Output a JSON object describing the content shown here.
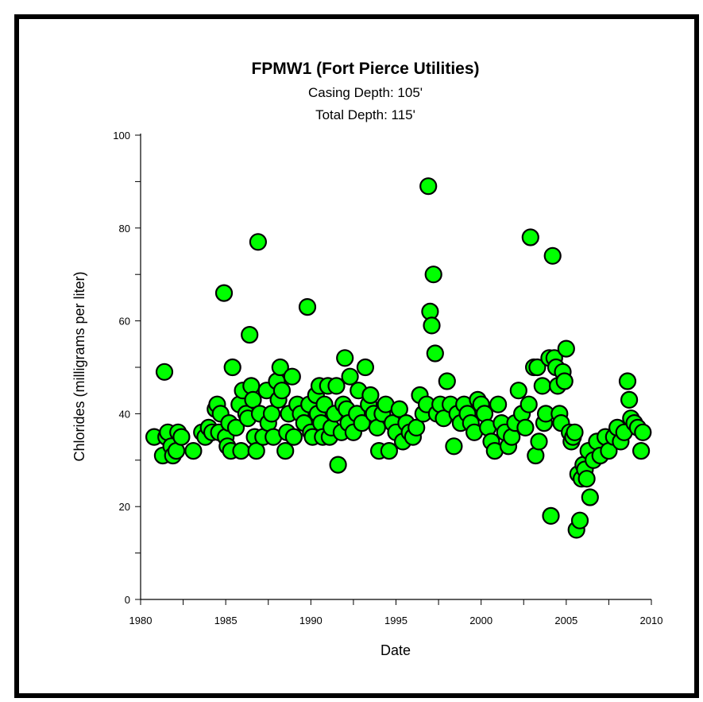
{
  "chart_data": {
    "type": "scatter",
    "title": "FPMW1 (Fort Pierce Utilities)",
    "subtitle_lines": [
      "Casing Depth:  105'",
      "Total Depth:  115'"
    ],
    "xlabel": "Date",
    "ylabel": "Chlorides (milligrams per liter)",
    "xlim": [
      1980,
      2010
    ],
    "ylim": [
      0,
      100
    ],
    "xticks": [
      "1980",
      "1985",
      "1990",
      "1995",
      "2000",
      "2005",
      "2010"
    ],
    "yticks": [
      "0",
      "20",
      "40",
      "60",
      "80",
      "100"
    ],
    "grid": false,
    "marker_color": "#00ff00",
    "marker_edge": "#000000",
    "points": [
      [
        1980.8,
        35
      ],
      [
        1981.3,
        31
      ],
      [
        1981.4,
        49
      ],
      [
        1981.5,
        35
      ],
      [
        1981.6,
        36
      ],
      [
        1981.8,
        33
      ],
      [
        1981.9,
        31
      ],
      [
        1982.1,
        32
      ],
      [
        1982.2,
        36
      ],
      [
        1982.4,
        35
      ],
      [
        1983.1,
        32
      ],
      [
        1983.6,
        36
      ],
      [
        1983.8,
        35
      ],
      [
        1984.0,
        37
      ],
      [
        1984.2,
        36
      ],
      [
        1984.4,
        41
      ],
      [
        1984.5,
        42
      ],
      [
        1984.6,
        36
      ],
      [
        1984.7,
        40
      ],
      [
        1984.9,
        66
      ],
      [
        1985.0,
        35
      ],
      [
        1985.1,
        33
      ],
      [
        1985.2,
        38
      ],
      [
        1985.3,
        32
      ],
      [
        1985.4,
        50
      ],
      [
        1985.6,
        37
      ],
      [
        1985.8,
        42
      ],
      [
        1985.9,
        32
      ],
      [
        1986.0,
        45
      ],
      [
        1986.2,
        40
      ],
      [
        1986.3,
        39
      ],
      [
        1986.4,
        57
      ],
      [
        1986.5,
        46
      ],
      [
        1986.6,
        43
      ],
      [
        1986.7,
        35
      ],
      [
        1986.8,
        32
      ],
      [
        1986.9,
        77
      ],
      [
        1987.0,
        40
      ],
      [
        1987.2,
        35
      ],
      [
        1987.4,
        45
      ],
      [
        1987.5,
        38
      ],
      [
        1987.7,
        40
      ],
      [
        1987.8,
        35
      ],
      [
        1988.0,
        47
      ],
      [
        1988.1,
        43
      ],
      [
        1988.2,
        50
      ],
      [
        1988.3,
        45
      ],
      [
        1988.5,
        32
      ],
      [
        1988.6,
        36
      ],
      [
        1988.7,
        40
      ],
      [
        1988.9,
        48
      ],
      [
        1989.0,
        35
      ],
      [
        1989.2,
        42
      ],
      [
        1989.4,
        40
      ],
      [
        1989.6,
        38
      ],
      [
        1989.8,
        63
      ],
      [
        1989.9,
        42
      ],
      [
        1990.0,
        36
      ],
      [
        1990.1,
        35
      ],
      [
        1990.3,
        44
      ],
      [
        1990.4,
        40
      ],
      [
        1990.5,
        46
      ],
      [
        1990.6,
        38
      ],
      [
        1990.7,
        35
      ],
      [
        1990.8,
        42
      ],
      [
        1991.0,
        46
      ],
      [
        1991.1,
        35
      ],
      [
        1991.2,
        37
      ],
      [
        1991.4,
        40
      ],
      [
        1991.5,
        46
      ],
      [
        1991.6,
        29
      ],
      [
        1991.8,
        36
      ],
      [
        1991.9,
        42
      ],
      [
        1992.0,
        52
      ],
      [
        1992.1,
        41
      ],
      [
        1992.2,
        38
      ],
      [
        1992.3,
        48
      ],
      [
        1992.5,
        36
      ],
      [
        1992.7,
        40
      ],
      [
        1992.8,
        45
      ],
      [
        1993.0,
        38
      ],
      [
        1993.2,
        50
      ],
      [
        1993.4,
        42
      ],
      [
        1993.5,
        44
      ],
      [
        1993.7,
        40
      ],
      [
        1993.9,
        37
      ],
      [
        1994.0,
        32
      ],
      [
        1994.2,
        40
      ],
      [
        1994.4,
        42
      ],
      [
        1994.6,
        32
      ],
      [
        1994.8,
        38
      ],
      [
        1995.0,
        36
      ],
      [
        1995.2,
        41
      ],
      [
        1995.4,
        34
      ],
      [
        1995.6,
        38
      ],
      [
        1995.8,
        36
      ],
      [
        1996.0,
        35
      ],
      [
        1996.2,
        37
      ],
      [
        1996.4,
        44
      ],
      [
        1996.6,
        40
      ],
      [
        1996.8,
        42
      ],
      [
        1996.9,
        89
      ],
      [
        1997.0,
        62
      ],
      [
        1997.1,
        59
      ],
      [
        1997.2,
        70
      ],
      [
        1997.3,
        53
      ],
      [
        1997.4,
        40
      ],
      [
        1997.6,
        42
      ],
      [
        1997.8,
        39
      ],
      [
        1998.0,
        47
      ],
      [
        1998.2,
        42
      ],
      [
        1998.4,
        33
      ],
      [
        1998.6,
        40
      ],
      [
        1998.8,
        38
      ],
      [
        1999.0,
        42
      ],
      [
        1999.2,
        40
      ],
      [
        1999.4,
        38
      ],
      [
        1999.6,
        36
      ],
      [
        1999.8,
        43
      ],
      [
        2000.0,
        42
      ],
      [
        2000.2,
        40
      ],
      [
        2000.4,
        37
      ],
      [
        2000.6,
        34
      ],
      [
        2000.8,
        32
      ],
      [
        2001.0,
        42
      ],
      [
        2001.2,
        38
      ],
      [
        2001.4,
        36
      ],
      [
        2001.6,
        33
      ],
      [
        2001.8,
        35
      ],
      [
        2002.0,
        38
      ],
      [
        2002.2,
        45
      ],
      [
        2002.4,
        40
      ],
      [
        2002.6,
        37
      ],
      [
        2002.8,
        42
      ],
      [
        2002.9,
        78
      ],
      [
        2003.1,
        50
      ],
      [
        2003.2,
        31
      ],
      [
        2003.3,
        50
      ],
      [
        2003.4,
        34
      ],
      [
        2003.6,
        46
      ],
      [
        2003.7,
        38
      ],
      [
        2003.8,
        40
      ],
      [
        2004.0,
        52
      ],
      [
        2004.1,
        18
      ],
      [
        2004.2,
        74
      ],
      [
        2004.3,
        52
      ],
      [
        2004.4,
        50
      ],
      [
        2004.5,
        46
      ],
      [
        2004.6,
        40
      ],
      [
        2004.7,
        38
      ],
      [
        2004.8,
        49
      ],
      [
        2004.9,
        47
      ],
      [
        2005.0,
        54
      ],
      [
        2005.2,
        36
      ],
      [
        2005.3,
        34
      ],
      [
        2005.4,
        35
      ],
      [
        2005.5,
        36
      ],
      [
        2005.6,
        15
      ],
      [
        2005.7,
        27
      ],
      [
        2005.8,
        17
      ],
      [
        2005.9,
        26
      ],
      [
        2006.0,
        29
      ],
      [
        2006.1,
        28
      ],
      [
        2006.2,
        26
      ],
      [
        2006.3,
        32
      ],
      [
        2006.4,
        22
      ],
      [
        2006.6,
        30
      ],
      [
        2006.8,
        34
      ],
      [
        2007.0,
        31
      ],
      [
        2007.3,
        35
      ],
      [
        2007.5,
        32
      ],
      [
        2007.8,
        35
      ],
      [
        2008.0,
        37
      ],
      [
        2008.2,
        34
      ],
      [
        2008.4,
        36
      ],
      [
        2008.6,
        47
      ],
      [
        2008.7,
        43
      ],
      [
        2008.8,
        39
      ],
      [
        2009.0,
        38
      ],
      [
        2009.2,
        37
      ],
      [
        2009.4,
        32
      ],
      [
        2009.5,
        36
      ]
    ]
  }
}
